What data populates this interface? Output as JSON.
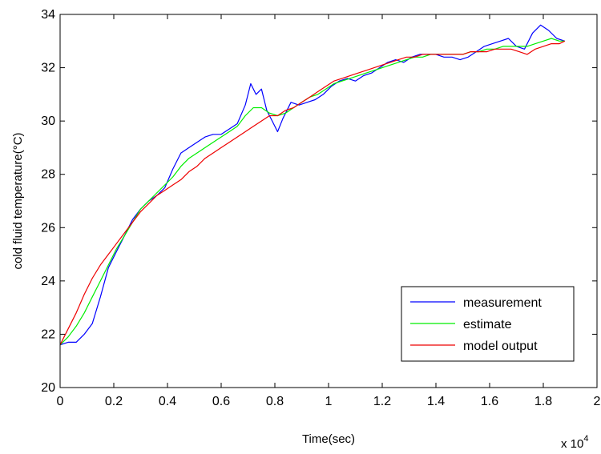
{
  "chart_data": {
    "type": "line",
    "xlabel": "Time(sec)",
    "ylabel": "cold fluid temperature(°C)",
    "x_multiplier_label": "x 10",
    "x_multiplier_exponent": "4",
    "xlim": [
      0,
      20000
    ],
    "ylim": [
      20,
      34
    ],
    "x_ticks": [
      0,
      2000,
      4000,
      6000,
      8000,
      10000,
      12000,
      14000,
      16000,
      18000,
      20000
    ],
    "x_tick_labels": [
      "0",
      "0.2",
      "0.4",
      "0.6",
      "0.8",
      "1",
      "1.2",
      "1.4",
      "1.6",
      "1.8",
      "2"
    ],
    "y_ticks": [
      20,
      22,
      24,
      26,
      28,
      30,
      32,
      34
    ],
    "y_tick_labels": [
      "20",
      "22",
      "24",
      "26",
      "28",
      "30",
      "32",
      "34"
    ],
    "grid": false,
    "legend_position": "lower-right",
    "series": [
      {
        "name": "measurement",
        "color": "#0000ff",
        "points": [
          [
            0,
            21.6
          ],
          [
            300,
            21.7
          ],
          [
            600,
            21.7
          ],
          [
            900,
            22.0
          ],
          [
            1200,
            22.4
          ],
          [
            1500,
            23.4
          ],
          [
            1800,
            24.5
          ],
          [
            2100,
            25.1
          ],
          [
            2400,
            25.7
          ],
          [
            2700,
            26.3
          ],
          [
            3000,
            26.7
          ],
          [
            3300,
            27.0
          ],
          [
            3600,
            27.2
          ],
          [
            3900,
            27.5
          ],
          [
            4200,
            28.2
          ],
          [
            4500,
            28.8
          ],
          [
            4800,
            29.0
          ],
          [
            5100,
            29.2
          ],
          [
            5400,
            29.4
          ],
          [
            5700,
            29.5
          ],
          [
            6000,
            29.5
          ],
          [
            6300,
            29.7
          ],
          [
            6600,
            29.9
          ],
          [
            6900,
            30.6
          ],
          [
            7100,
            31.4
          ],
          [
            7300,
            31.0
          ],
          [
            7500,
            31.2
          ],
          [
            7700,
            30.4
          ],
          [
            7900,
            30.0
          ],
          [
            8100,
            29.6
          ],
          [
            8300,
            30.1
          ],
          [
            8600,
            30.7
          ],
          [
            8900,
            30.6
          ],
          [
            9200,
            30.7
          ],
          [
            9500,
            30.8
          ],
          [
            9800,
            31.0
          ],
          [
            10100,
            31.3
          ],
          [
            10400,
            31.5
          ],
          [
            10700,
            31.6
          ],
          [
            11000,
            31.5
          ],
          [
            11300,
            31.7
          ],
          [
            11600,
            31.8
          ],
          [
            11900,
            32.0
          ],
          [
            12200,
            32.2
          ],
          [
            12500,
            32.3
          ],
          [
            12800,
            32.2
          ],
          [
            13100,
            32.4
          ],
          [
            13400,
            32.5
          ],
          [
            13700,
            32.5
          ],
          [
            14000,
            32.5
          ],
          [
            14300,
            32.4
          ],
          [
            14600,
            32.4
          ],
          [
            14900,
            32.3
          ],
          [
            15200,
            32.4
          ],
          [
            15500,
            32.6
          ],
          [
            15800,
            32.8
          ],
          [
            16100,
            32.9
          ],
          [
            16400,
            33.0
          ],
          [
            16700,
            33.1
          ],
          [
            17000,
            32.8
          ],
          [
            17300,
            32.7
          ],
          [
            17600,
            33.3
          ],
          [
            17900,
            33.6
          ],
          [
            18200,
            33.4
          ],
          [
            18500,
            33.1
          ],
          [
            18800,
            33.0
          ]
        ]
      },
      {
        "name": "estimate",
        "color": "#00ee00",
        "points": [
          [
            0,
            21.6
          ],
          [
            300,
            21.9
          ],
          [
            600,
            22.3
          ],
          [
            900,
            22.8
          ],
          [
            1200,
            23.4
          ],
          [
            1500,
            24.0
          ],
          [
            1800,
            24.6
          ],
          [
            2100,
            25.2
          ],
          [
            2400,
            25.7
          ],
          [
            2700,
            26.2
          ],
          [
            3000,
            26.7
          ],
          [
            3300,
            27.0
          ],
          [
            3600,
            27.3
          ],
          [
            3900,
            27.6
          ],
          [
            4200,
            27.9
          ],
          [
            4500,
            28.3
          ],
          [
            4800,
            28.6
          ],
          [
            5100,
            28.8
          ],
          [
            5400,
            29.0
          ],
          [
            5700,
            29.2
          ],
          [
            6000,
            29.4
          ],
          [
            6300,
            29.6
          ],
          [
            6600,
            29.8
          ],
          [
            6900,
            30.2
          ],
          [
            7200,
            30.5
          ],
          [
            7500,
            30.5
          ],
          [
            7800,
            30.3
          ],
          [
            8100,
            30.2
          ],
          [
            8400,
            30.3
          ],
          [
            8700,
            30.5
          ],
          [
            9000,
            30.7
          ],
          [
            9300,
            30.9
          ],
          [
            9600,
            31.0
          ],
          [
            9900,
            31.2
          ],
          [
            10200,
            31.4
          ],
          [
            10500,
            31.5
          ],
          [
            10800,
            31.6
          ],
          [
            11100,
            31.7
          ],
          [
            11400,
            31.8
          ],
          [
            11700,
            31.9
          ],
          [
            12000,
            32.0
          ],
          [
            12300,
            32.1
          ],
          [
            12600,
            32.2
          ],
          [
            12900,
            32.3
          ],
          [
            13200,
            32.4
          ],
          [
            13500,
            32.4
          ],
          [
            13800,
            32.5
          ],
          [
            14100,
            32.5
          ],
          [
            14400,
            32.5
          ],
          [
            14700,
            32.5
          ],
          [
            15000,
            32.5
          ],
          [
            15300,
            32.6
          ],
          [
            15600,
            32.6
          ],
          [
            15900,
            32.7
          ],
          [
            16200,
            32.7
          ],
          [
            16500,
            32.8
          ],
          [
            16800,
            32.8
          ],
          [
            17100,
            32.8
          ],
          [
            17400,
            32.8
          ],
          [
            17700,
            32.9
          ],
          [
            18000,
            33.0
          ],
          [
            18300,
            33.1
          ],
          [
            18600,
            33.0
          ],
          [
            18800,
            33.0
          ]
        ]
      },
      {
        "name": "model output",
        "color": "#ee0000",
        "points": [
          [
            0,
            21.6
          ],
          [
            300,
            22.2
          ],
          [
            600,
            22.8
          ],
          [
            900,
            23.5
          ],
          [
            1200,
            24.1
          ],
          [
            1500,
            24.6
          ],
          [
            1800,
            25.0
          ],
          [
            2100,
            25.4
          ],
          [
            2400,
            25.8
          ],
          [
            2700,
            26.2
          ],
          [
            3000,
            26.6
          ],
          [
            3300,
            26.9
          ],
          [
            3600,
            27.2
          ],
          [
            3900,
            27.4
          ],
          [
            4200,
            27.6
          ],
          [
            4500,
            27.8
          ],
          [
            4800,
            28.1
          ],
          [
            5100,
            28.3
          ],
          [
            5400,
            28.6
          ],
          [
            5700,
            28.8
          ],
          [
            6000,
            29.0
          ],
          [
            6300,
            29.2
          ],
          [
            6600,
            29.4
          ],
          [
            6900,
            29.6
          ],
          [
            7200,
            29.8
          ],
          [
            7500,
            30.0
          ],
          [
            7800,
            30.2
          ],
          [
            8100,
            30.2
          ],
          [
            8400,
            30.4
          ],
          [
            8700,
            30.5
          ],
          [
            9000,
            30.7
          ],
          [
            9300,
            30.9
          ],
          [
            9600,
            31.1
          ],
          [
            9900,
            31.3
          ],
          [
            10200,
            31.5
          ],
          [
            10500,
            31.6
          ],
          [
            10800,
            31.7
          ],
          [
            11100,
            31.8
          ],
          [
            11400,
            31.9
          ],
          [
            11700,
            32.0
          ],
          [
            12000,
            32.1
          ],
          [
            12300,
            32.2
          ],
          [
            12600,
            32.3
          ],
          [
            12900,
            32.4
          ],
          [
            13200,
            32.4
          ],
          [
            13500,
            32.5
          ],
          [
            13800,
            32.5
          ],
          [
            14100,
            32.5
          ],
          [
            14400,
            32.5
          ],
          [
            14700,
            32.5
          ],
          [
            15000,
            32.5
          ],
          [
            15300,
            32.6
          ],
          [
            15600,
            32.6
          ],
          [
            15900,
            32.6
          ],
          [
            16200,
            32.7
          ],
          [
            16500,
            32.7
          ],
          [
            16800,
            32.7
          ],
          [
            17100,
            32.6
          ],
          [
            17400,
            32.5
          ],
          [
            17700,
            32.7
          ],
          [
            18000,
            32.8
          ],
          [
            18300,
            32.9
          ],
          [
            18600,
            32.9
          ],
          [
            18800,
            33.0
          ]
        ]
      }
    ]
  }
}
